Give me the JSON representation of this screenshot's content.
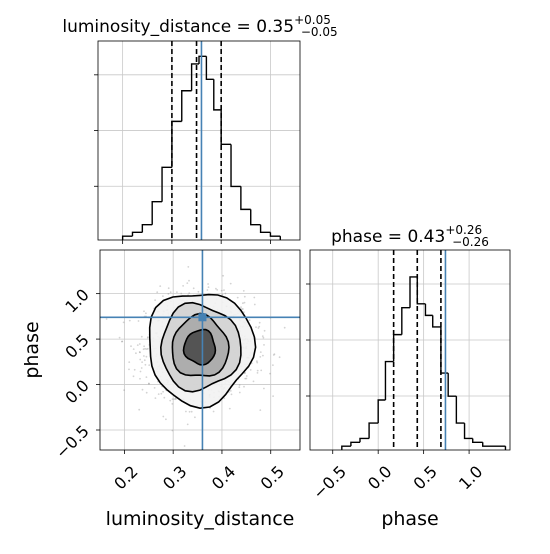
{
  "colors": {
    "truth": "#4682b4",
    "hist": "#000000",
    "quantile": "#000000",
    "grid": "#c8c8c8",
    "samples": "#808080",
    "fill_low": "#f2f2f2",
    "fill_mid": "#d2d2d2",
    "fill_high": "#a8a8a8",
    "fill_peak": "#4a4a4a",
    "axes_frame": "#000000"
  },
  "chart_data": {
    "type": "corner",
    "parameters": [
      "luminosity_distance",
      "phase"
    ],
    "truths": {
      "luminosity_distance": 0.36,
      "phase": 0.74
    },
    "grid": true,
    "panels": {
      "hist_luminosity_distance": {
        "type": "histogram",
        "title": "luminosity_distance = 0.35",
        "title_upper": "+0.05",
        "title_lower": "−0.05",
        "xlim": [
          0.15,
          0.56
        ],
        "ylim": [
          0,
          52
        ],
        "bins": [
          {
            "x": [
              0.2,
              0.22
            ],
            "y": 1
          },
          {
            "x": [
              0.22,
              0.24
            ],
            "y": 2
          },
          {
            "x": [
              0.24,
              0.26
            ],
            "y": 4
          },
          {
            "x": [
              0.26,
              0.28
            ],
            "y": 10
          },
          {
            "x": [
              0.28,
              0.3
            ],
            "y": 19
          },
          {
            "x": [
              0.3,
              0.32
            ],
            "y": 31
          },
          {
            "x": [
              0.32,
              0.34
            ],
            "y": 39
          },
          {
            "x": [
              0.34,
              0.355
            ],
            "y": 46
          },
          {
            "x": [
              0.355,
              0.37
            ],
            "y": 48
          },
          {
            "x": [
              0.37,
              0.385
            ],
            "y": 42
          },
          {
            "x": [
              0.385,
              0.4
            ],
            "y": 34
          },
          {
            "x": [
              0.4,
              0.42
            ],
            "y": 25
          },
          {
            "x": [
              0.42,
              0.44
            ],
            "y": 14
          },
          {
            "x": [
              0.44,
              0.46
            ],
            "y": 8
          },
          {
            "x": [
              0.46,
              0.48
            ],
            "y": 4
          },
          {
            "x": [
              0.48,
              0.5
            ],
            "y": 2
          },
          {
            "x": [
              0.5,
              0.52
            ],
            "y": 1
          }
        ],
        "quantiles": [
          0.3,
          0.35,
          0.4
        ]
      },
      "hist_phase": {
        "type": "histogram",
        "title": "phase = 0.43",
        "title_upper": "+0.26",
        "title_lower": "−0.26",
        "xlim": [
          -0.75,
          1.45
        ],
        "ylim": [
          0,
          52
        ],
        "xticks": [
          -0.5,
          0.0,
          0.5,
          1.0
        ],
        "xtick_labels": [
          "−0.5",
          "0.0",
          "0.5",
          "1.0"
        ],
        "xlabel": "phase",
        "bins": [
          {
            "x": [
              -0.4,
              -0.3
            ],
            "y": 1
          },
          {
            "x": [
              -0.3,
              -0.2
            ],
            "y": 2
          },
          {
            "x": [
              -0.2,
              -0.1
            ],
            "y": 3
          },
          {
            "x": [
              -0.1,
              0.0
            ],
            "y": 7
          },
          {
            "x": [
              0.0,
              0.08
            ],
            "y": 13
          },
          {
            "x": [
              0.08,
              0.17
            ],
            "y": 23
          },
          {
            "x": [
              0.17,
              0.26
            ],
            "y": 30
          },
          {
            "x": [
              0.26,
              0.35
            ],
            "y": 37
          },
          {
            "x": [
              0.35,
              0.43
            ],
            "y": 45
          },
          {
            "x": [
              0.43,
              0.52
            ],
            "y": 38
          },
          {
            "x": [
              0.52,
              0.6
            ],
            "y": 35
          },
          {
            "x": [
              0.6,
              0.69
            ],
            "y": 32
          },
          {
            "x": [
              0.69,
              0.77
            ],
            "y": 20
          },
          {
            "x": [
              0.77,
              0.86
            ],
            "y": 14
          },
          {
            "x": [
              0.86,
              0.95
            ],
            "y": 7
          },
          {
            "x": [
              0.95,
              1.04
            ],
            "y": 3
          },
          {
            "x": [
              1.04,
              1.15
            ],
            "y": 2
          },
          {
            "x": [
              1.15,
              1.4
            ],
            "y": 1
          }
        ],
        "quantiles": [
          0.17,
          0.43,
          0.69
        ]
      },
      "joint": {
        "type": "density_contour",
        "xlim": [
          0.15,
          0.56
        ],
        "ylim": [
          -0.72,
          1.48
        ],
        "xticks": [
          0.2,
          0.3,
          0.4,
          0.5
        ],
        "xtick_labels": [
          "0.2",
          "0.3",
          "0.4",
          "0.5"
        ],
        "yticks": [
          -0.5,
          0.0,
          0.5,
          1.0
        ],
        "ytick_labels": [
          "−0.5",
          "0.0",
          "0.5",
          "1.0"
        ],
        "xlabel": "luminosity_distance",
        "ylabel": "phase",
        "center": [
          0.355,
          0.41
        ],
        "levels": [
          {
            "sx": 0.032,
            "sy": 0.19,
            "fill_key": "fill_peak"
          },
          {
            "sx": 0.058,
            "sy": 0.34,
            "fill_key": "fill_high"
          },
          {
            "sx": 0.082,
            "sy": 0.47,
            "fill_key": "fill_mid"
          },
          {
            "sx": 0.108,
            "sy": 0.62,
            "fill_key": "fill_low"
          }
        ]
      }
    }
  }
}
